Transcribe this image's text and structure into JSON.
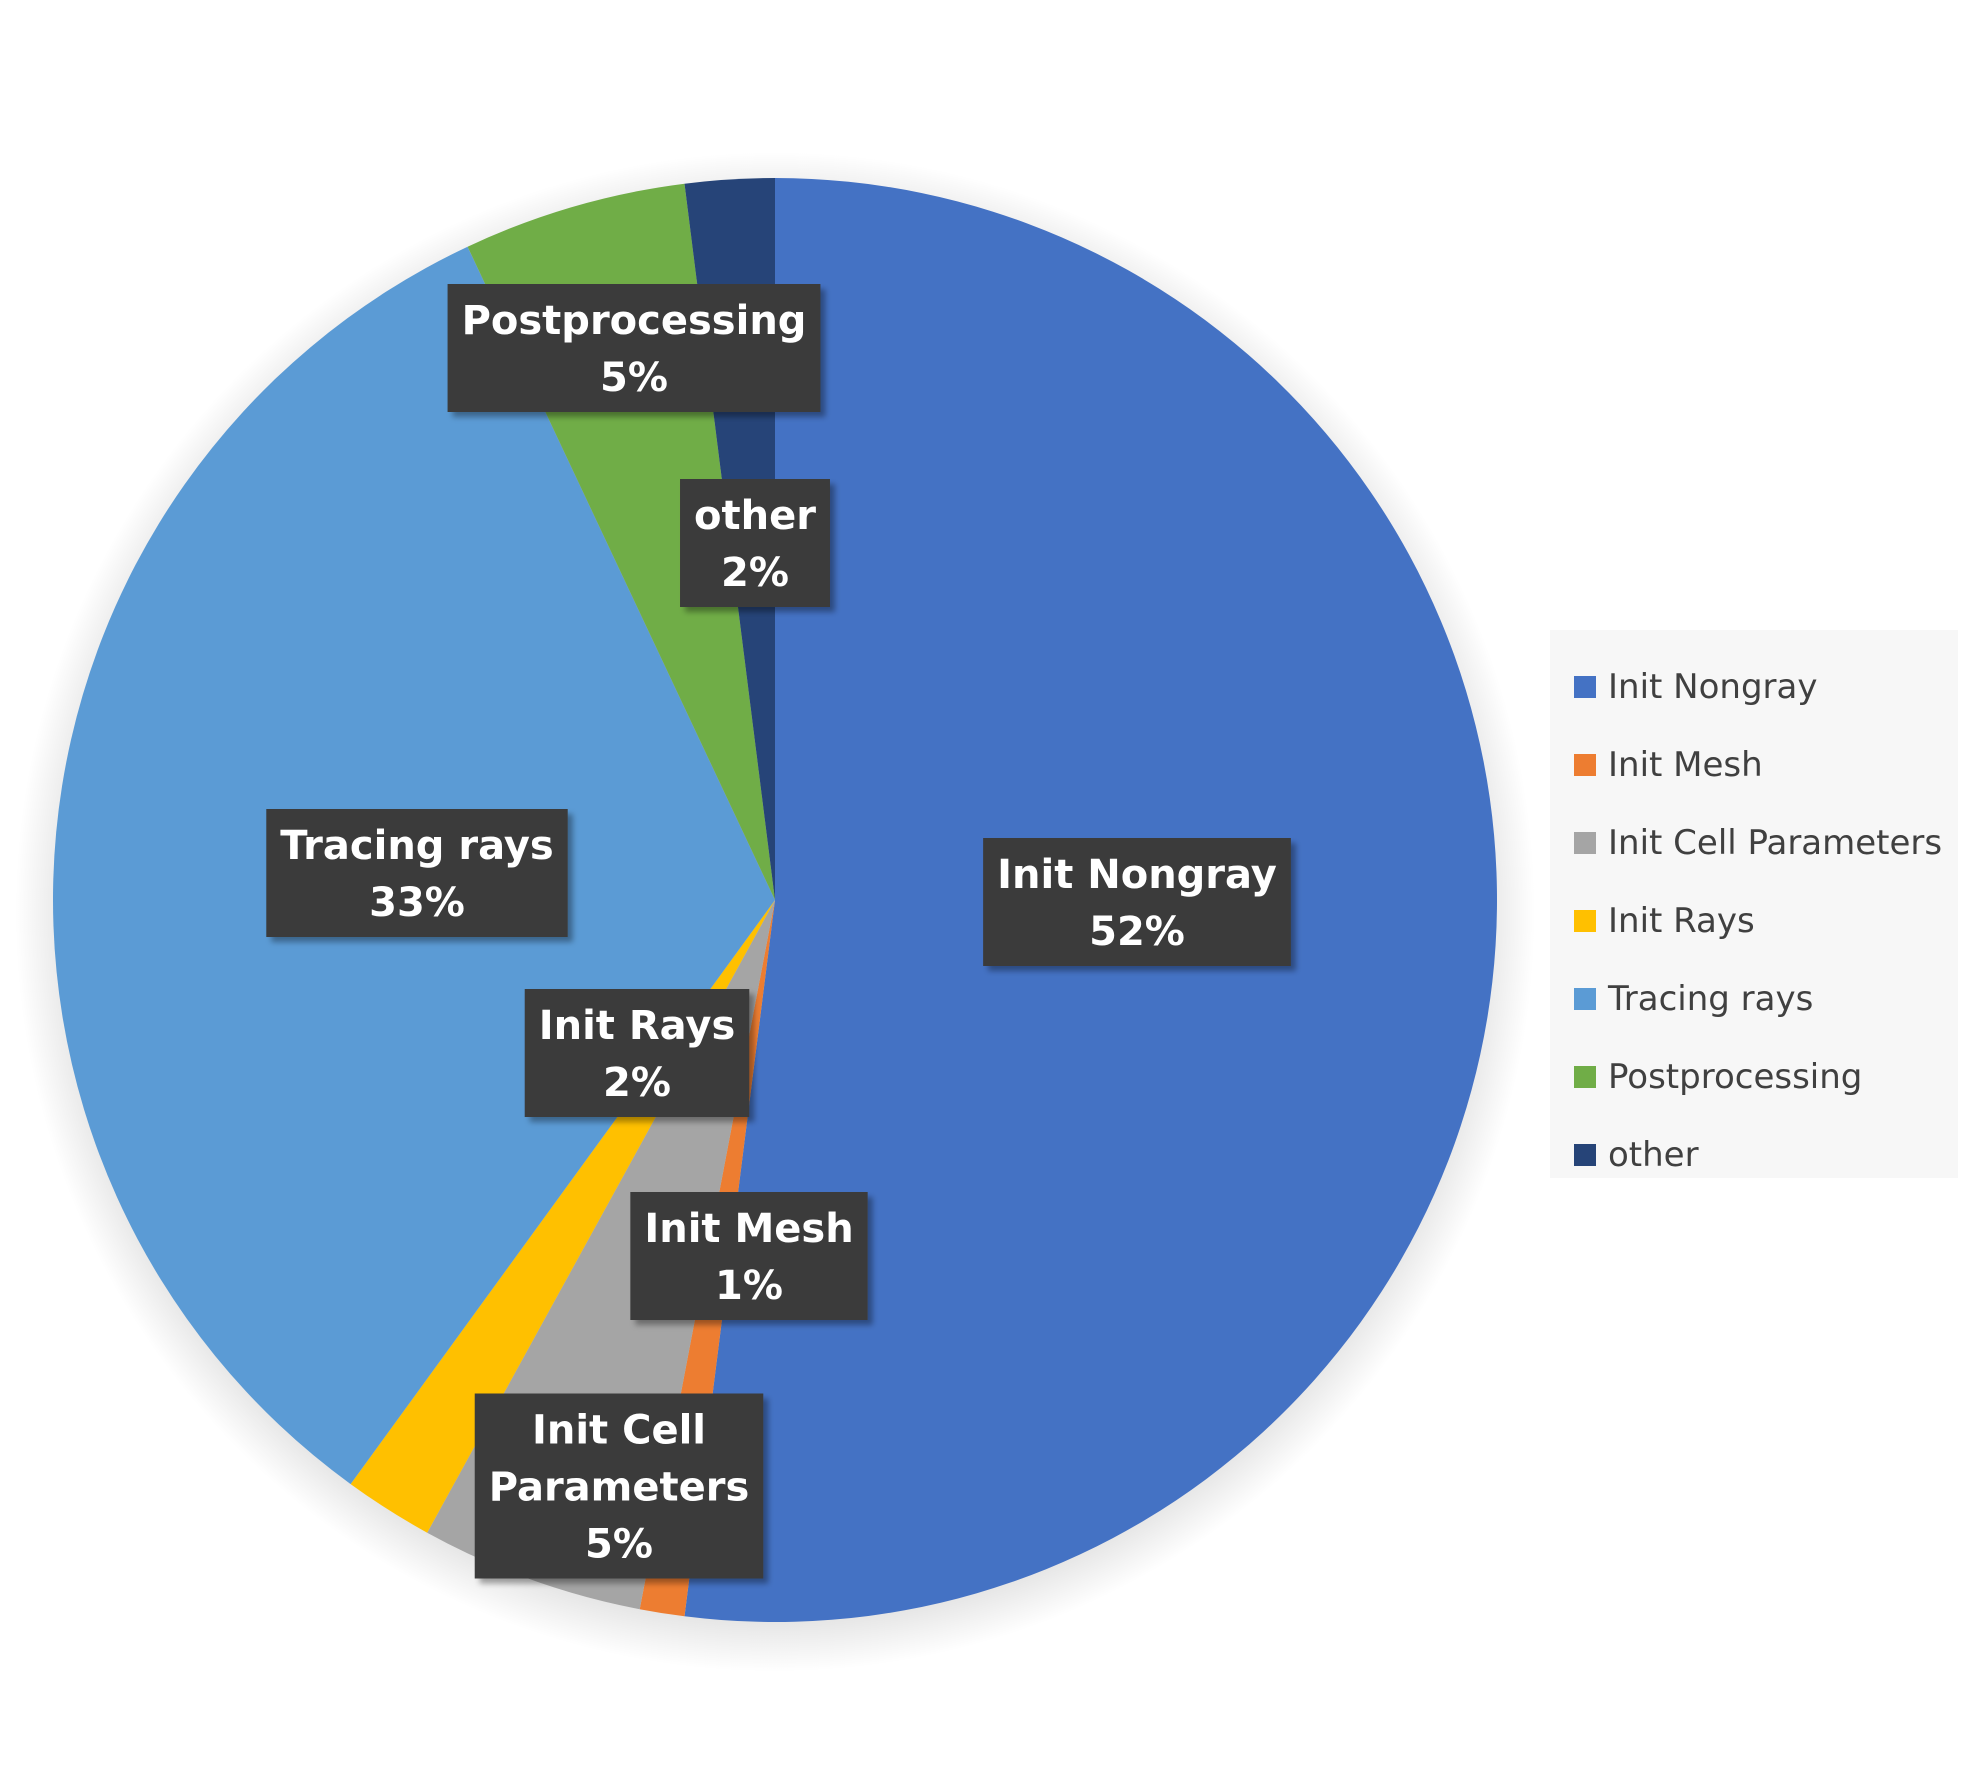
{
  "chart_data": {
    "type": "pie",
    "title": "",
    "start_angle_deg": 0,
    "direction": "clockwise",
    "legend_position": "right",
    "slices": [
      {
        "name": "Init Nongray",
        "value": 52,
        "label": [
          "Init Nongray",
          "52%"
        ],
        "color": "#4472C4"
      },
      {
        "name": "Init Mesh",
        "value": 1,
        "label": [
          "Init Mesh",
          "1%"
        ],
        "color": "#ED7D31"
      },
      {
        "name": "Init Cell Parameters",
        "value": 5,
        "label": [
          "Init Cell",
          "Parameters",
          "5%"
        ],
        "color": "#A5A5A5"
      },
      {
        "name": "Init Rays",
        "value": 2,
        "label": [
          "Init Rays",
          "2%"
        ],
        "color": "#FFC000"
      },
      {
        "name": "Tracing rays",
        "value": 33,
        "label": [
          "Tracing rays",
          "33%"
        ],
        "color": "#5B9BD5"
      },
      {
        "name": "Postprocessing",
        "value": 5,
        "label": [
          "Postprocessing",
          "5%"
        ],
        "color": "#70AD47"
      },
      {
        "name": "other",
        "value": 2,
        "label": [
          "other",
          "2%"
        ],
        "color": "#264478"
      }
    ]
  }
}
